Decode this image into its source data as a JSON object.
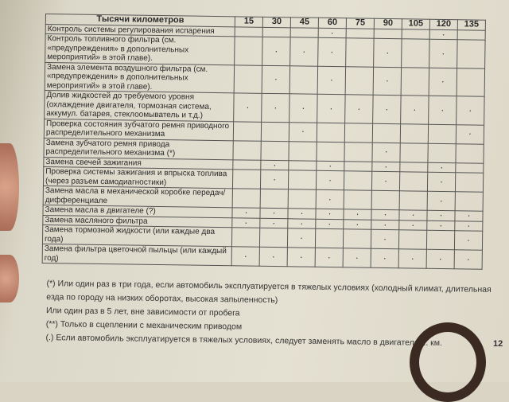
{
  "table": {
    "header": "Тысячи километров",
    "columns": [
      "15",
      "30",
      "45",
      "60",
      "75",
      "90",
      "105",
      "120",
      "135"
    ],
    "rows": [
      {
        "label": "Контроль системы регулирования испарения",
        "marks": [
          0,
          0,
          0,
          1,
          0,
          0,
          0,
          1,
          0
        ]
      },
      {
        "label": "Контроль топливного фильтра (см. «предупреждения» в дополнительных мероприятий» в этой главе).",
        "marks": [
          0,
          1,
          1,
          1,
          0,
          1,
          0,
          1,
          0
        ]
      },
      {
        "label": "Замена элемента воздушного фильтра (см. «предупреждения» в дополнительных мероприятий» в этой главе).",
        "marks": [
          0,
          1,
          0,
          1,
          0,
          1,
          0,
          1,
          0
        ]
      },
      {
        "label": "Долив жидкостей до требуемого уровня (охлаждение двигателя, тормозная система, аккумул. батарея, стеклоомыватель и т.д.)",
        "marks": [
          1,
          1,
          1,
          1,
          1,
          1,
          1,
          1,
          1
        ]
      },
      {
        "label": "Проверка состояния зубчатого ремня приводного распределительного механизма",
        "marks": [
          0,
          0,
          1,
          0,
          0,
          0,
          0,
          0,
          1
        ]
      },
      {
        "label": "Замена зубчатого ремня привода распределительного механизма (*)",
        "marks": [
          0,
          0,
          0,
          0,
          0,
          1,
          0,
          0,
          0
        ]
      },
      {
        "label": "Замена свечей зажигания",
        "marks": [
          0,
          1,
          0,
          1,
          0,
          1,
          0,
          1,
          0
        ]
      },
      {
        "label": "Проверка системы зажигания и впрыска топлива (через разъем самодиагностики)",
        "marks": [
          0,
          1,
          0,
          1,
          0,
          1,
          0,
          1,
          0
        ]
      },
      {
        "label": "Замена масла в механической коробке передач/дифференциале",
        "marks": [
          0,
          0,
          0,
          1,
          0,
          0,
          0,
          1,
          0
        ]
      },
      {
        "label": "Замена масла в двигателе (?)",
        "marks": [
          1,
          1,
          1,
          1,
          1,
          1,
          1,
          1,
          1
        ]
      },
      {
        "label": "Замена масляного фильтра",
        "marks": [
          1,
          1,
          1,
          1,
          1,
          1,
          1,
          1,
          1
        ]
      },
      {
        "label": "Замена тормозной жидкости (или каждые два года)",
        "marks": [
          0,
          0,
          1,
          0,
          0,
          1,
          0,
          0,
          1
        ]
      },
      {
        "label": "Замена фильтра цветочной пыльцы (или каждый год)",
        "marks": [
          1,
          1,
          1,
          1,
          1,
          1,
          1,
          1,
          1
        ]
      }
    ]
  },
  "notes": [
    "(*) Или один раз в три года, если автомобиль эксплуатируется в тяжелых условиях (холодный климат, длительная езда по городу на низких оборотах, высокая запыленность)",
    "Или один раз в 5 лет, вне зависимости от пробега",
    "(**) Только в сцеплении с механическим приводом",
    "(.) Если автомобиль эксплуатируется в тяжелых условиях, следует заменять масло в двигателе ... км."
  ],
  "page_number": "12"
}
